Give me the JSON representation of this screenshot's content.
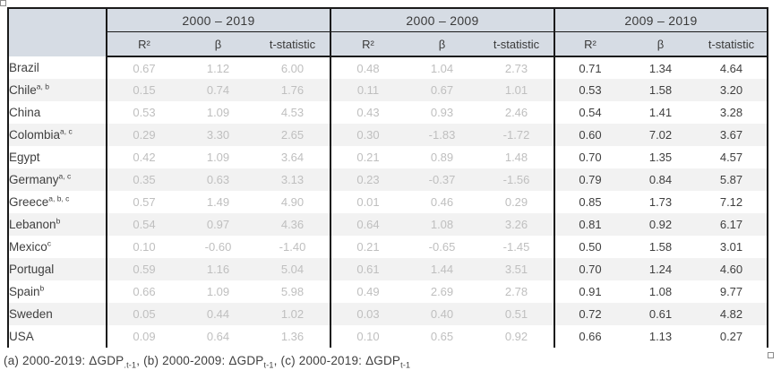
{
  "chart_data": {
    "type": "table",
    "column_groups": [
      {
        "label": "2000 – 2019",
        "muted": true
      },
      {
        "label": "2000 – 2009",
        "muted": true
      },
      {
        "label": "2009 – 2019",
        "muted": false
      }
    ],
    "subcolumns": [
      "R²",
      "β",
      "t-statistic"
    ],
    "rows": [
      {
        "country": "Brazil",
        "notes": "",
        "values": [
          [
            "0.67",
            "1.12",
            "6.00"
          ],
          [
            "0.48",
            "1.04",
            "2.73"
          ],
          [
            "0.71",
            "1.34",
            "4.64"
          ]
        ]
      },
      {
        "country": "Chile",
        "notes": "a, b",
        "values": [
          [
            "0.15",
            "0.74",
            "1.76"
          ],
          [
            "0.11",
            "0.67",
            "1.01"
          ],
          [
            "0.53",
            "1.58",
            "3.20"
          ]
        ]
      },
      {
        "country": "China",
        "notes": "",
        "values": [
          [
            "0.53",
            "1.09",
            "4.53"
          ],
          [
            "0.43",
            "0.93",
            "2.46"
          ],
          [
            "0.54",
            "1.41",
            "3.28"
          ]
        ]
      },
      {
        "country": "Colombia",
        "notes": "a, c",
        "values": [
          [
            "0.29",
            "3.30",
            "2.65"
          ],
          [
            "0.30",
            "-1.83",
            "-1.72"
          ],
          [
            "0.60",
            "7.02",
            "3.67"
          ]
        ]
      },
      {
        "country": "Egypt",
        "notes": "",
        "values": [
          [
            "0.42",
            "1.09",
            "3.64"
          ],
          [
            "0.21",
            "0.89",
            "1.48"
          ],
          [
            "0.70",
            "1.35",
            "4.57"
          ]
        ]
      },
      {
        "country": "Germany",
        "notes": "a, c",
        "values": [
          [
            "0.35",
            "0.63",
            "3.13"
          ],
          [
            "0.23",
            "-0.37",
            "-1.56"
          ],
          [
            "0.79",
            "0.84",
            "5.87"
          ]
        ]
      },
      {
        "country": "Greece",
        "notes": "a, b, c",
        "values": [
          [
            "0.57",
            "1.49",
            "4.90"
          ],
          [
            "0.01",
            "0.46",
            "0.29"
          ],
          [
            "0.85",
            "1.73",
            "7.12"
          ]
        ]
      },
      {
        "country": "Lebanon",
        "notes": "b",
        "values": [
          [
            "0.54",
            "0.97",
            "4.36"
          ],
          [
            "0.64",
            "1.08",
            "3.26"
          ],
          [
            "0.81",
            "0.92",
            "6.17"
          ]
        ]
      },
      {
        "country": "Mexico",
        "notes": "c",
        "values": [
          [
            "0.10",
            "-0.60",
            "-1.40"
          ],
          [
            "0.21",
            "-0.65",
            "-1.45"
          ],
          [
            "0.50",
            "1.58",
            "3.01"
          ]
        ]
      },
      {
        "country": "Portugal",
        "notes": "",
        "values": [
          [
            "0.59",
            "1.16",
            "5.04"
          ],
          [
            "0.61",
            "1.44",
            "3.51"
          ],
          [
            "0.70",
            "1.24",
            "4.60"
          ]
        ]
      },
      {
        "country": "Spain",
        "notes": "b",
        "values": [
          [
            "0.66",
            "1.09",
            "5.98"
          ],
          [
            "0.49",
            "2.69",
            "2.78"
          ],
          [
            "0.91",
            "1.08",
            "9.77"
          ]
        ]
      },
      {
        "country": "Sweden",
        "notes": "",
        "values": [
          [
            "0.05",
            "0.44",
            "1.02"
          ],
          [
            "0.03",
            "0.40",
            "0.51"
          ],
          [
            "0.72",
            "0.61",
            "4.82"
          ]
        ]
      },
      {
        "country": "USA",
        "notes": "",
        "values": [
          [
            "0.09",
            "0.64",
            "1.36"
          ],
          [
            "0.10",
            "0.65",
            "0.92"
          ],
          [
            "0.66",
            "1.13",
            "0.27"
          ]
        ]
      }
    ],
    "footnote_parts": [
      {
        "text": "(a) 2000-2019: ΔGDP"
      },
      {
        "sub": ".t-1"
      },
      {
        "text": ", (b) 2000-2009: ΔGDP"
      },
      {
        "sub": "t-1"
      },
      {
        "text": ", (c) 2000-2019: ΔGDP"
      },
      {
        "sub": "t-1"
      }
    ]
  },
  "colors": {
    "header_bg": "#d6dce4",
    "stripe_bg": "#f2f2f2",
    "border": "#1a1a1a",
    "muted_text": "#bfbfbf",
    "dark_text": "#3f3f3f"
  }
}
